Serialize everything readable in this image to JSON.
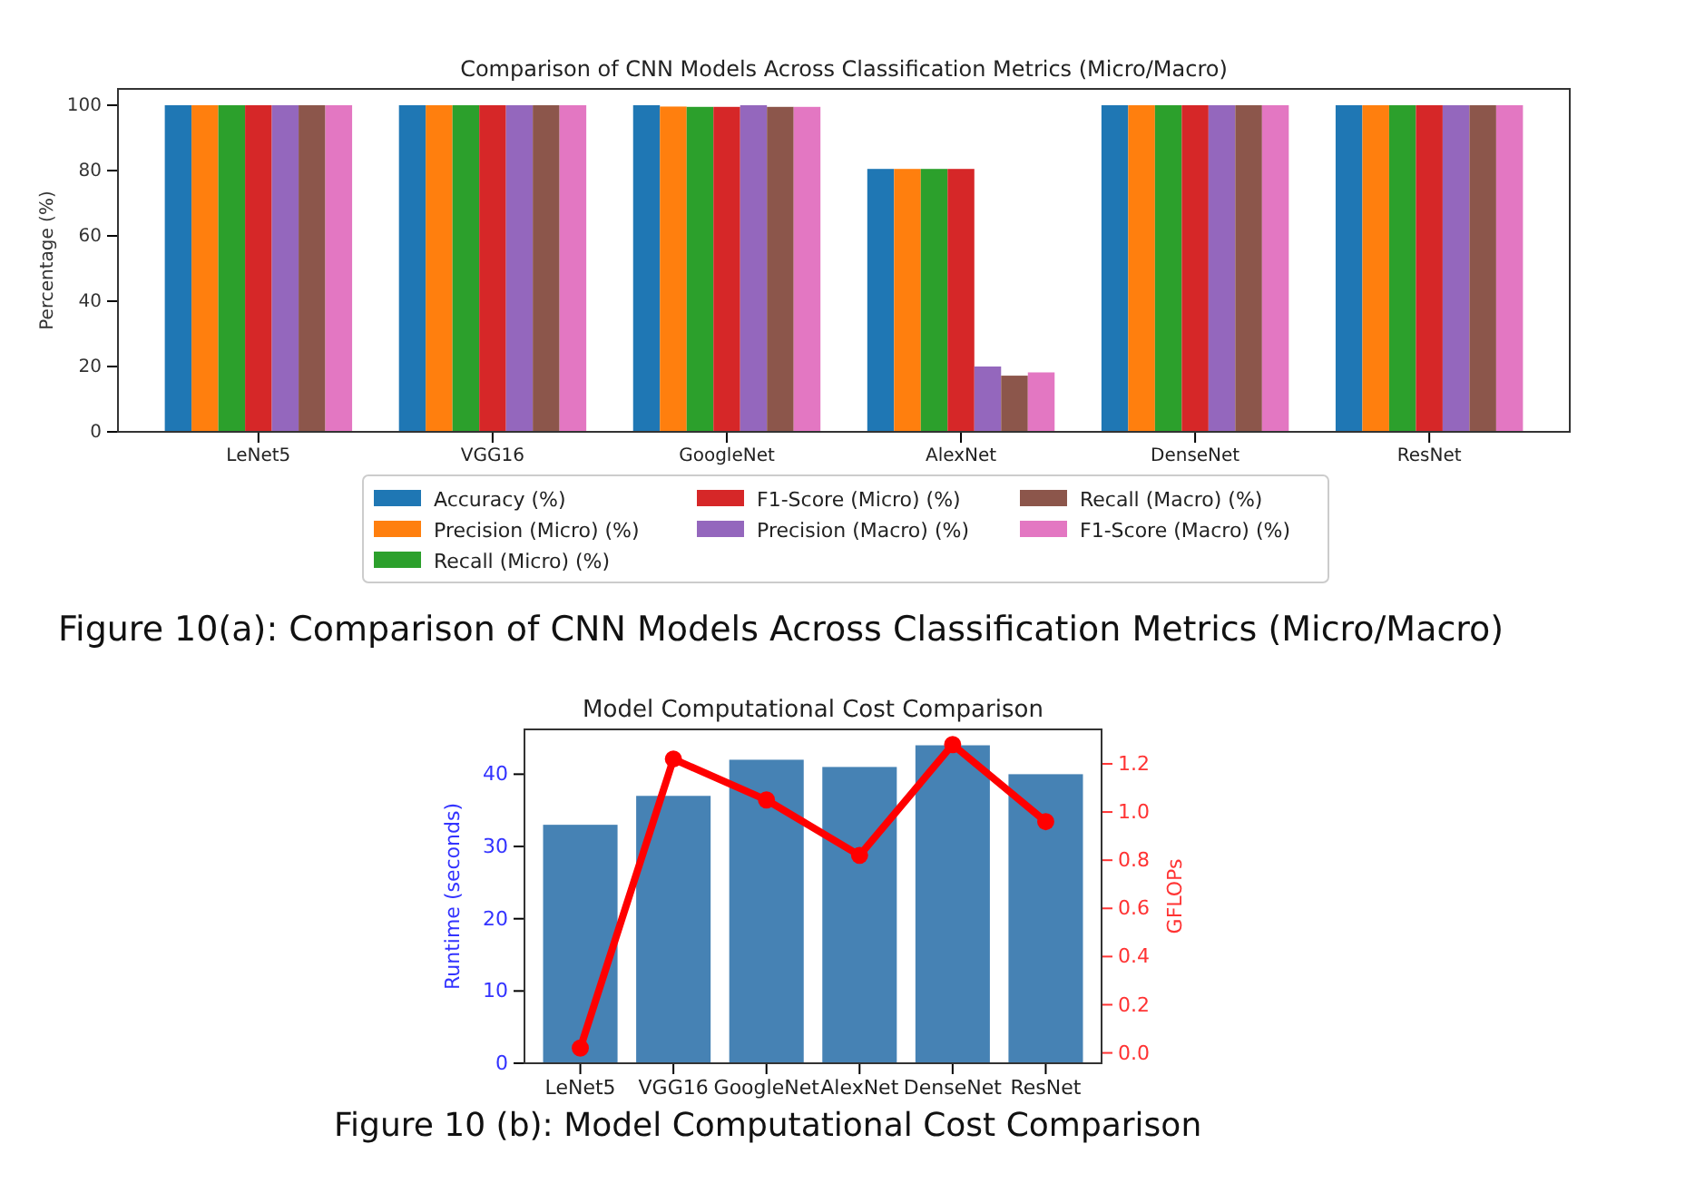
{
  "chart_data": [
    {
      "type": "bar",
      "title": "Comparison of CNN Models Across Classification Metrics (Micro/Macro)",
      "ylabel": "Percentage (%)",
      "categories": [
        "LeNet5",
        "VGG16",
        "GoogleNet",
        "AlexNet",
        "DenseNet",
        "ResNet"
      ],
      "ylim": [
        0,
        105
      ],
      "yticks": [
        0,
        20,
        40,
        60,
        80,
        100
      ],
      "legend": "bottom",
      "annotations": [
        "Figure 10(a): Comparison of CNN Models Across Classification Metrics (Micro/Macro)"
      ],
      "series": [
        {
          "name": "Accuracy (%)",
          "color": "#1f77b4",
          "values": [
            100,
            100,
            100,
            80.5,
            100,
            100
          ]
        },
        {
          "name": "Precision (Micro) (%)",
          "color": "#ff7f0e",
          "values": [
            100,
            100,
            99.6,
            80.5,
            100,
            100
          ]
        },
        {
          "name": "Recall (Micro) (%)",
          "color": "#2ca02c",
          "values": [
            100,
            100,
            99.5,
            80.5,
            100,
            100
          ]
        },
        {
          "name": "F1-Score (Micro) (%)",
          "color": "#d62728",
          "values": [
            100,
            100,
            99.5,
            80.5,
            100,
            100
          ]
        },
        {
          "name": "Precision (Macro) (%)",
          "color": "#9467bd",
          "values": [
            100,
            100,
            100,
            20,
            100,
            100
          ]
        },
        {
          "name": "Recall (Macro) (%)",
          "color": "#8c564b",
          "values": [
            100,
            100,
            99.5,
            17.2,
            100,
            100
          ]
        },
        {
          "name": "F1-Score (Macro) (%)",
          "color": "#e377c2",
          "values": [
            100,
            100,
            99.5,
            18.2,
            100,
            100
          ]
        }
      ]
    },
    {
      "type": "bar",
      "title": "Model Computational Cost Comparison",
      "ylabel": "Runtime (seconds)",
      "y2label": "GFLOPs",
      "categories": [
        "LeNet5",
        "VGG16",
        "GoogleNet",
        "AlexNet",
        "DenseNet",
        "ResNet"
      ],
      "ylim": [
        0,
        46.2
      ],
      "yticks": [
        0,
        10,
        20,
        30,
        40
      ],
      "y2lim": [
        -0.043,
        1.343
      ],
      "y2ticks": [
        {
          "value": 0,
          "label": "0.0"
        },
        0.2,
        0.4,
        0.6,
        0.8,
        {
          "value": 1,
          "label": "1.0"
        },
        1.2
      ],
      "marker": "circle",
      "annotations": [
        "Figure 10 (b): Model Computational Cost Comparison"
      ],
      "series": [
        {
          "type": "bar",
          "color": "#4682b4",
          "values": [
            33,
            37,
            42,
            41,
            44,
            40
          ]
        },
        {
          "type": "line",
          "axis": "y2",
          "color": "#ff0000",
          "values": [
            0.02,
            1.22,
            1.05,
            0.82,
            1.28,
            0.96
          ]
        }
      ]
    }
  ]
}
